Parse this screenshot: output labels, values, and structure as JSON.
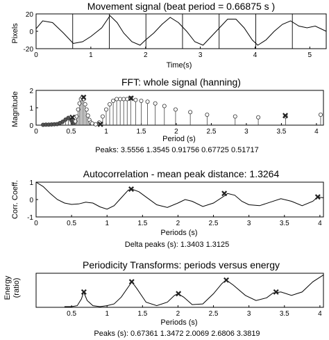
{
  "chart_data": [
    {
      "type": "line",
      "title": "Movement signal (beat period = 0.66875 s )",
      "xlabel": "Time(s)",
      "ylabel": "Pixels",
      "xlim": [
        0,
        5.3
      ],
      "ylim": [
        -20,
        20
      ],
      "xticks": [
        0,
        1,
        2,
        3,
        4,
        5
      ],
      "yticks": [
        -20,
        0,
        20
      ],
      "beat_lines": [
        0.66875,
        1.3375,
        2.00625,
        2.675,
        3.34375,
        4.0125,
        4.68125
      ],
      "series": [
        {
          "x": [
            0,
            0.12,
            0.3,
            0.5,
            0.68,
            0.85,
            1.0,
            1.2,
            1.35,
            1.48,
            1.6,
            1.75,
            1.9,
            2.0,
            2.15,
            2.3,
            2.45,
            2.6,
            2.75,
            2.9,
            3.05,
            3.2,
            3.35,
            3.5,
            3.65,
            3.8,
            3.95,
            4.05,
            4.2,
            4.35,
            4.5,
            4.65,
            4.8,
            4.95,
            5.1,
            5.3
          ],
          "y": [
            3,
            12,
            10,
            -2,
            -14,
            -12,
            -6,
            4,
            18,
            10,
            -2,
            -12,
            -16,
            -10,
            -2,
            8,
            16,
            10,
            0,
            -12,
            -16,
            -6,
            4,
            14,
            14,
            4,
            -10,
            -16,
            -10,
            0,
            8,
            12,
            6,
            4,
            6,
            0
          ]
        }
      ]
    },
    {
      "type": "bar",
      "title": "FFT: whole signal (hanning)",
      "xlabel": "Period (s)",
      "ylabel": "Magnitude",
      "xlim": [
        0,
        4.1
      ],
      "ylim": [
        0,
        2
      ],
      "xticks": [
        0,
        0.5,
        1,
        1.5,
        2,
        2.5,
        3,
        3.5,
        4
      ],
      "yticks": [
        0,
        1,
        2
      ],
      "x": [
        0.1,
        0.14,
        0.18,
        0.22,
        0.26,
        0.3,
        0.34,
        0.38,
        0.42,
        0.46,
        0.5,
        0.52,
        0.54,
        0.56,
        0.58,
        0.6,
        0.62,
        0.64,
        0.66,
        0.68,
        0.7,
        0.72,
        0.74,
        0.76,
        0.78,
        0.8,
        0.85,
        0.9,
        0.95,
        1.0,
        1.05,
        1.1,
        1.15,
        1.2,
        1.25,
        1.3,
        1.35,
        1.42,
        1.5,
        1.59,
        1.7,
        1.83,
        1.99,
        2.2,
        2.44,
        2.84,
        3.17,
        3.56,
        4.06
      ],
      "values": [
        0.02,
        0.03,
        0.03,
        0.04,
        0.05,
        0.06,
        0.12,
        0.2,
        0.32,
        0.42,
        0.3,
        0.15,
        0.1,
        0.22,
        0.5,
        0.9,
        1.25,
        1.5,
        1.6,
        1.5,
        1.2,
        0.9,
        0.55,
        0.3,
        0.15,
        0.1,
        0.05,
        0.15,
        0.5,
        0.9,
        1.2,
        1.4,
        1.5,
        1.5,
        1.5,
        1.5,
        1.55,
        1.45,
        1.4,
        1.35,
        1.25,
        1.1,
        0.9,
        0.75,
        0.6,
        0.5,
        0.45,
        0.5,
        0.6
      ],
      "peaks_x": [
        3.5556,
        1.3545,
        0.91756,
        0.67725,
        0.51717
      ],
      "peaks_y": [
        0.55,
        1.55,
        0.05,
        1.6,
        0.45
      ],
      "annotation": "Peaks: 3.5556    1.3545    0.91756    0.67725    0.51717"
    },
    {
      "type": "line",
      "title": "Autocorrelation - mean peak distance: 1.3264",
      "xlabel": "Periods (s)",
      "ylabel": "Corr. Coeff.",
      "xlim": [
        0,
        4.05
      ],
      "ylim": [
        -1,
        1
      ],
      "xticks": [
        0,
        0.5,
        1,
        1.5,
        2,
        2.5,
        3,
        3.5,
        4
      ],
      "yticks": [
        -1,
        0,
        1
      ],
      "series": [
        {
          "x": [
            0,
            0.1,
            0.2,
            0.3,
            0.4,
            0.5,
            0.6,
            0.7,
            0.8,
            0.9,
            1.0,
            1.1,
            1.2,
            1.3,
            1.35,
            1.45,
            1.55,
            1.7,
            1.85,
            2.0,
            2.1,
            2.2,
            2.35,
            2.5,
            2.65,
            2.7,
            2.8,
            2.9,
            3.0,
            3.15,
            3.3,
            3.45,
            3.6,
            3.75,
            3.9,
            3.97,
            4.05
          ],
          "y": [
            1,
            0.75,
            0.35,
            0.0,
            -0.2,
            -0.28,
            -0.25,
            -0.15,
            -0.2,
            -0.42,
            -0.55,
            -0.35,
            0.1,
            0.55,
            0.6,
            0.45,
            0.15,
            -0.3,
            -0.45,
            -0.2,
            0.0,
            -0.1,
            -0.4,
            -0.2,
            0.2,
            0.35,
            0.25,
            -0.1,
            -0.3,
            -0.35,
            -0.15,
            0.05,
            -0.1,
            -0.35,
            -0.1,
            0.15,
            0.1
          ]
        }
      ],
      "peaks_x": [
        1.3403,
        2.6528,
        3.97
      ],
      "peaks_y": [
        0.6,
        0.35,
        0.15
      ],
      "annotation": "Delta peaks (s): 1.3403     1.3125"
    },
    {
      "type": "line",
      "title": "Periodicity Transforms: periods versus energy",
      "xlabel": "Periods (s)",
      "ylabel_lines": [
        "Energy",
        "(ratio)"
      ],
      "xlim": [
        0,
        4.05
      ],
      "ylim": [
        0,
        1
      ],
      "xticks": [
        0.5,
        1,
        1.5,
        2,
        2.5,
        3,
        3.5,
        4
      ],
      "series": [
        {
          "x": [
            0.4,
            0.5,
            0.58,
            0.64,
            0.67,
            0.72,
            0.8,
            0.9,
            1.0,
            1.1,
            1.2,
            1.3,
            1.35,
            1.42,
            1.55,
            1.7,
            1.85,
            1.95,
            2.0,
            2.08,
            2.2,
            2.35,
            2.5,
            2.62,
            2.68,
            2.78,
            2.95,
            3.1,
            3.25,
            3.34,
            3.45,
            3.6,
            3.75,
            3.9,
            4.05
          ],
          "y": [
            0.02,
            0.02,
            0.05,
            0.25,
            0.45,
            0.2,
            0.05,
            0.02,
            0.05,
            0.1,
            0.3,
            0.6,
            0.75,
            0.55,
            0.15,
            0.05,
            0.15,
            0.35,
            0.4,
            0.3,
            0.08,
            0.1,
            0.4,
            0.7,
            0.8,
            0.65,
            0.35,
            0.2,
            0.28,
            0.42,
            0.45,
            0.35,
            0.45,
            0.75,
            0.95
          ]
        }
      ],
      "peaks_x": [
        0.67361,
        1.3472,
        2.0069,
        2.6806,
        3.3819
      ],
      "peaks_y": [
        0.45,
        0.75,
        0.4,
        0.8,
        0.45
      ],
      "annotation": "Peaks (s): 0.67361    1.3472    2.0069    2.6806    3.3819"
    }
  ]
}
